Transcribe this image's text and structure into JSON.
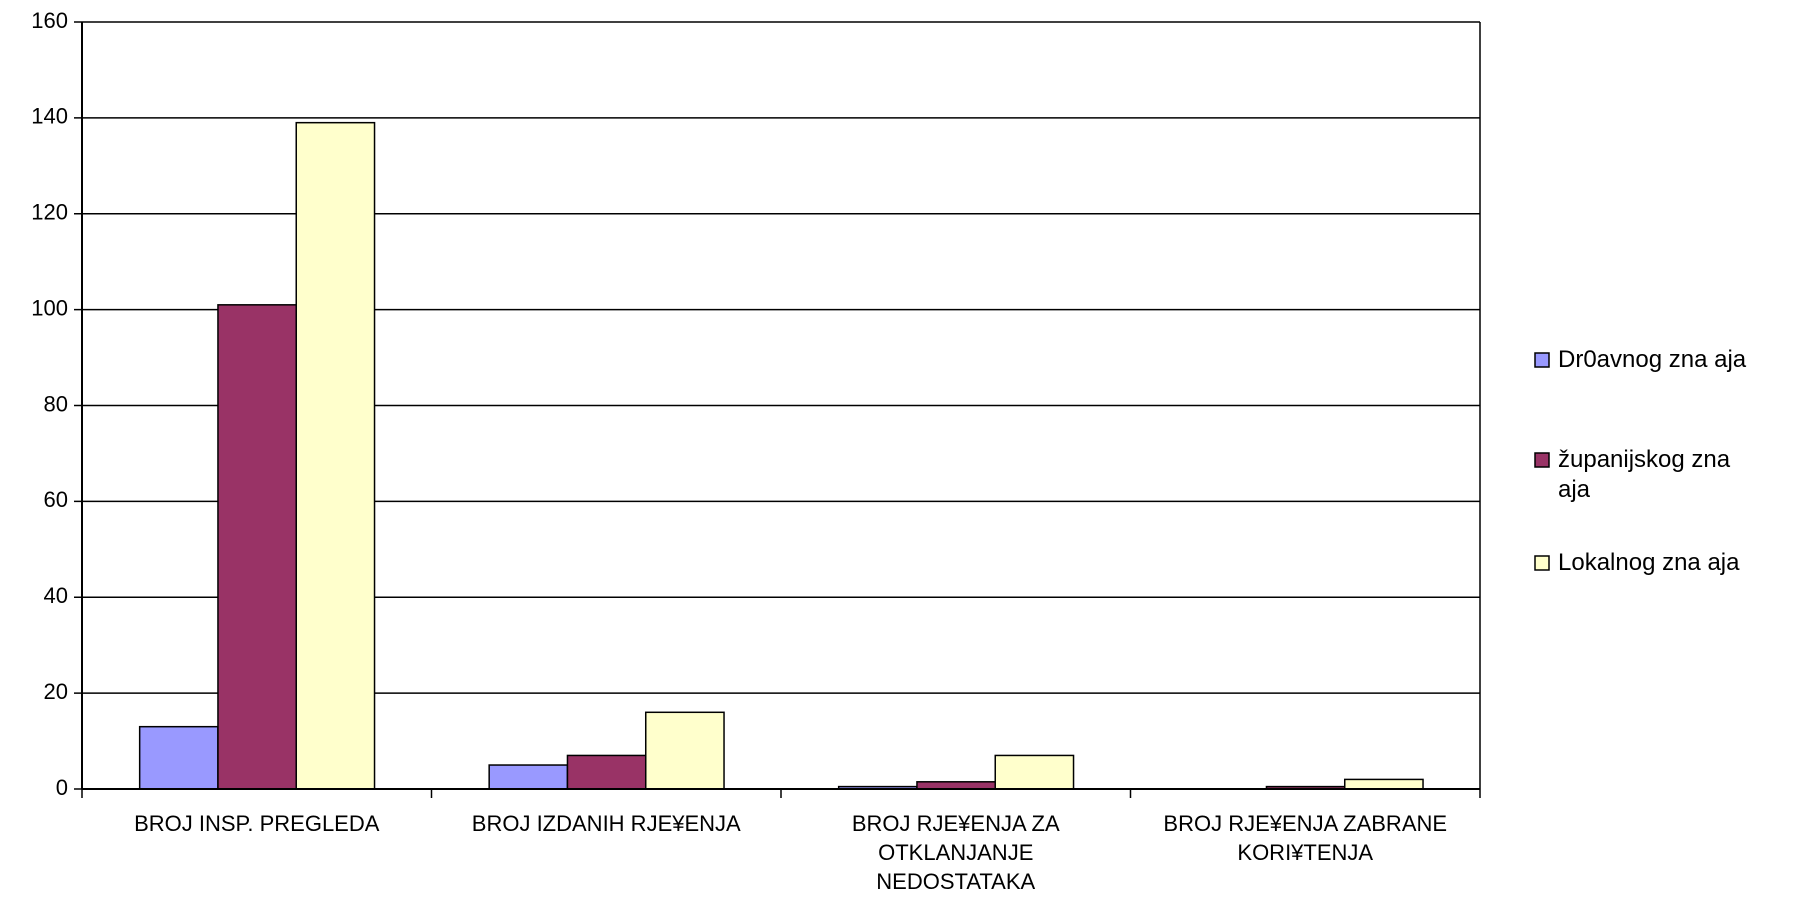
{
  "chart_data": {
    "type": "bar",
    "categories": [
      "BROJ INSP. PREGLEDA",
      "BROJ IZDANIH RJE¥ENJA",
      "BROJ RJE¥ENJA ZA OTKLANJANJE NEDOSTATAKA",
      "BROJ RJE¥ENJA ZABRANE KORI¥TENJA"
    ],
    "series": [
      {
        "name": "Dr0avnog zna aja",
        "color": "#9999ff",
        "values": [
          13,
          5,
          0.5,
          0
        ]
      },
      {
        "name": "županijskog zna aja",
        "color": "#993366",
        "values": [
          101,
          7,
          1.5,
          0.5
        ]
      },
      {
        "name": "Lokalnog zna aja",
        "color": "#ffffcc",
        "values": [
          139,
          16,
          7,
          2
        ]
      }
    ],
    "ylim": [
      0,
      160
    ],
    "yticks": [
      0,
      20,
      40,
      60,
      80,
      100,
      120,
      140,
      160
    ],
    "grid": true,
    "legend": "right"
  }
}
